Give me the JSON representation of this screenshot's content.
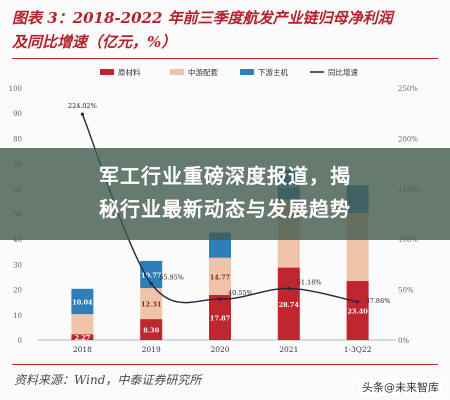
{
  "figure": {
    "title_line1": "图表 3：2018-2022 年前三季度航发产业链归母净利润",
    "title_line2": "及同比增速（亿元，%）",
    "source": "资料来源：Wind，中泰证券研究所"
  },
  "overlay": {
    "headline_line1": "军工行业重磅深度报道，揭",
    "headline_line2": "秘行业最新动态与发展趋势"
  },
  "watermark": {
    "text": "头条@未来智库"
  },
  "chart_data": {
    "type": "bar",
    "stacked": true,
    "categories": [
      "2018",
      "2019",
      "2020",
      "2021",
      "1-3Q22"
    ],
    "series": [
      {
        "name": "原材料",
        "color": "#c0262e",
        "values": [
          2.27,
          8.3,
          17.87,
          28.74,
          23.4
        ]
      },
      {
        "name": "中游配套",
        "color": "#f0c4a8",
        "values": [
          8.0,
          12.31,
          14.77,
          27.0,
          27.0
        ]
      },
      {
        "name": "下游主机",
        "color": "#2e7fb8",
        "values": [
          10.04,
          10.77,
          10.0,
          11.88,
          11.0
        ]
      }
    ],
    "line_series": {
      "name": "同比增速",
      "color": "#1c2a45",
      "axis": "right",
      "values": [
        224.02,
        55.95,
        40.55,
        51.18,
        37.86
      ]
    },
    "data_labels": {
      "原材料": [
        "2.27",
        "8.30",
        "17.87",
        "28.74",
        "23.40"
      ],
      "中游配套": [
        "",
        "12.31",
        "14.77",
        "",
        ""
      ],
      "下游主机": [
        "10.04",
        "10.77",
        "",
        "11.88",
        ""
      ],
      "同比增速": [
        "224.02%",
        "55.95%",
        "40.55%",
        "51.18%",
        "37.86%"
      ]
    },
    "y_left": {
      "ylim": [
        0,
        100
      ],
      "ticks": [
        "0",
        "10",
        "20",
        "30",
        "40",
        "50",
        "60",
        "70",
        "80",
        "90",
        "100"
      ]
    },
    "y_right": {
      "ylim": [
        0,
        250
      ],
      "ticks": [
        "0%",
        "50%",
        "100%",
        "150%",
        "200%",
        "250%"
      ]
    },
    "legend_position": "top",
    "grid": false
  }
}
